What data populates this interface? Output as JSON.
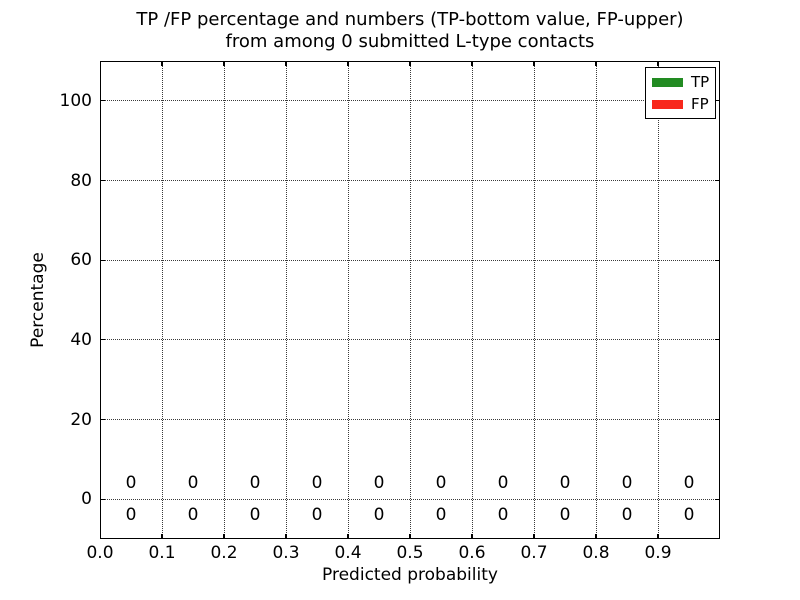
{
  "chart_data": {
    "type": "bar",
    "title_lines": [
      "TP /FP percentage and numbers (TP-bottom value, FP-upper)",
      "from among 0 submitted L-type contacts"
    ],
    "xlabel": "Predicted probability",
    "ylabel": "Percentage",
    "xlim": [
      0.0,
      1.0
    ],
    "ylim": [
      -10,
      110
    ],
    "xtick_values": [
      0.0,
      0.1,
      0.2,
      0.3,
      0.4,
      0.5,
      0.6,
      0.7,
      0.8,
      0.9
    ],
    "xtick_labels": [
      "0.0",
      "0.1",
      "0.2",
      "0.3",
      "0.4",
      "0.5",
      "0.6",
      "0.7",
      "0.8",
      "0.9"
    ],
    "ytick_values": [
      0,
      20,
      40,
      60,
      80,
      100
    ],
    "ytick_labels": [
      "0",
      "20",
      "40",
      "60",
      "80",
      "100"
    ],
    "grid": true,
    "grid_style": "dotted",
    "bin_centers": [
      0.05,
      0.15,
      0.25,
      0.35,
      0.45,
      0.55,
      0.65,
      0.75,
      0.85,
      0.95
    ],
    "series": [
      {
        "name": "TP",
        "color": "#228B22",
        "values": [
          0,
          0,
          0,
          0,
          0,
          0,
          0,
          0,
          0,
          0
        ],
        "bar_heights_pct": [
          0,
          0,
          0,
          0,
          0,
          0,
          0,
          0,
          0,
          0
        ],
        "value_label_y": -4,
        "label_row": "bottom"
      },
      {
        "name": "FP",
        "color": "#F8281C",
        "values": [
          0,
          0,
          0,
          0,
          0,
          0,
          0,
          0,
          0,
          0
        ],
        "bar_heights_pct": [
          0,
          0,
          0,
          0,
          0,
          0,
          0,
          0,
          0,
          0
        ],
        "value_label_y": 4,
        "label_row": "top"
      }
    ],
    "legend": {
      "position": "upper-right",
      "entries": [
        {
          "label": "TP",
          "color": "#228B22"
        },
        {
          "label": "FP",
          "color": "#F8281C"
        }
      ]
    }
  }
}
